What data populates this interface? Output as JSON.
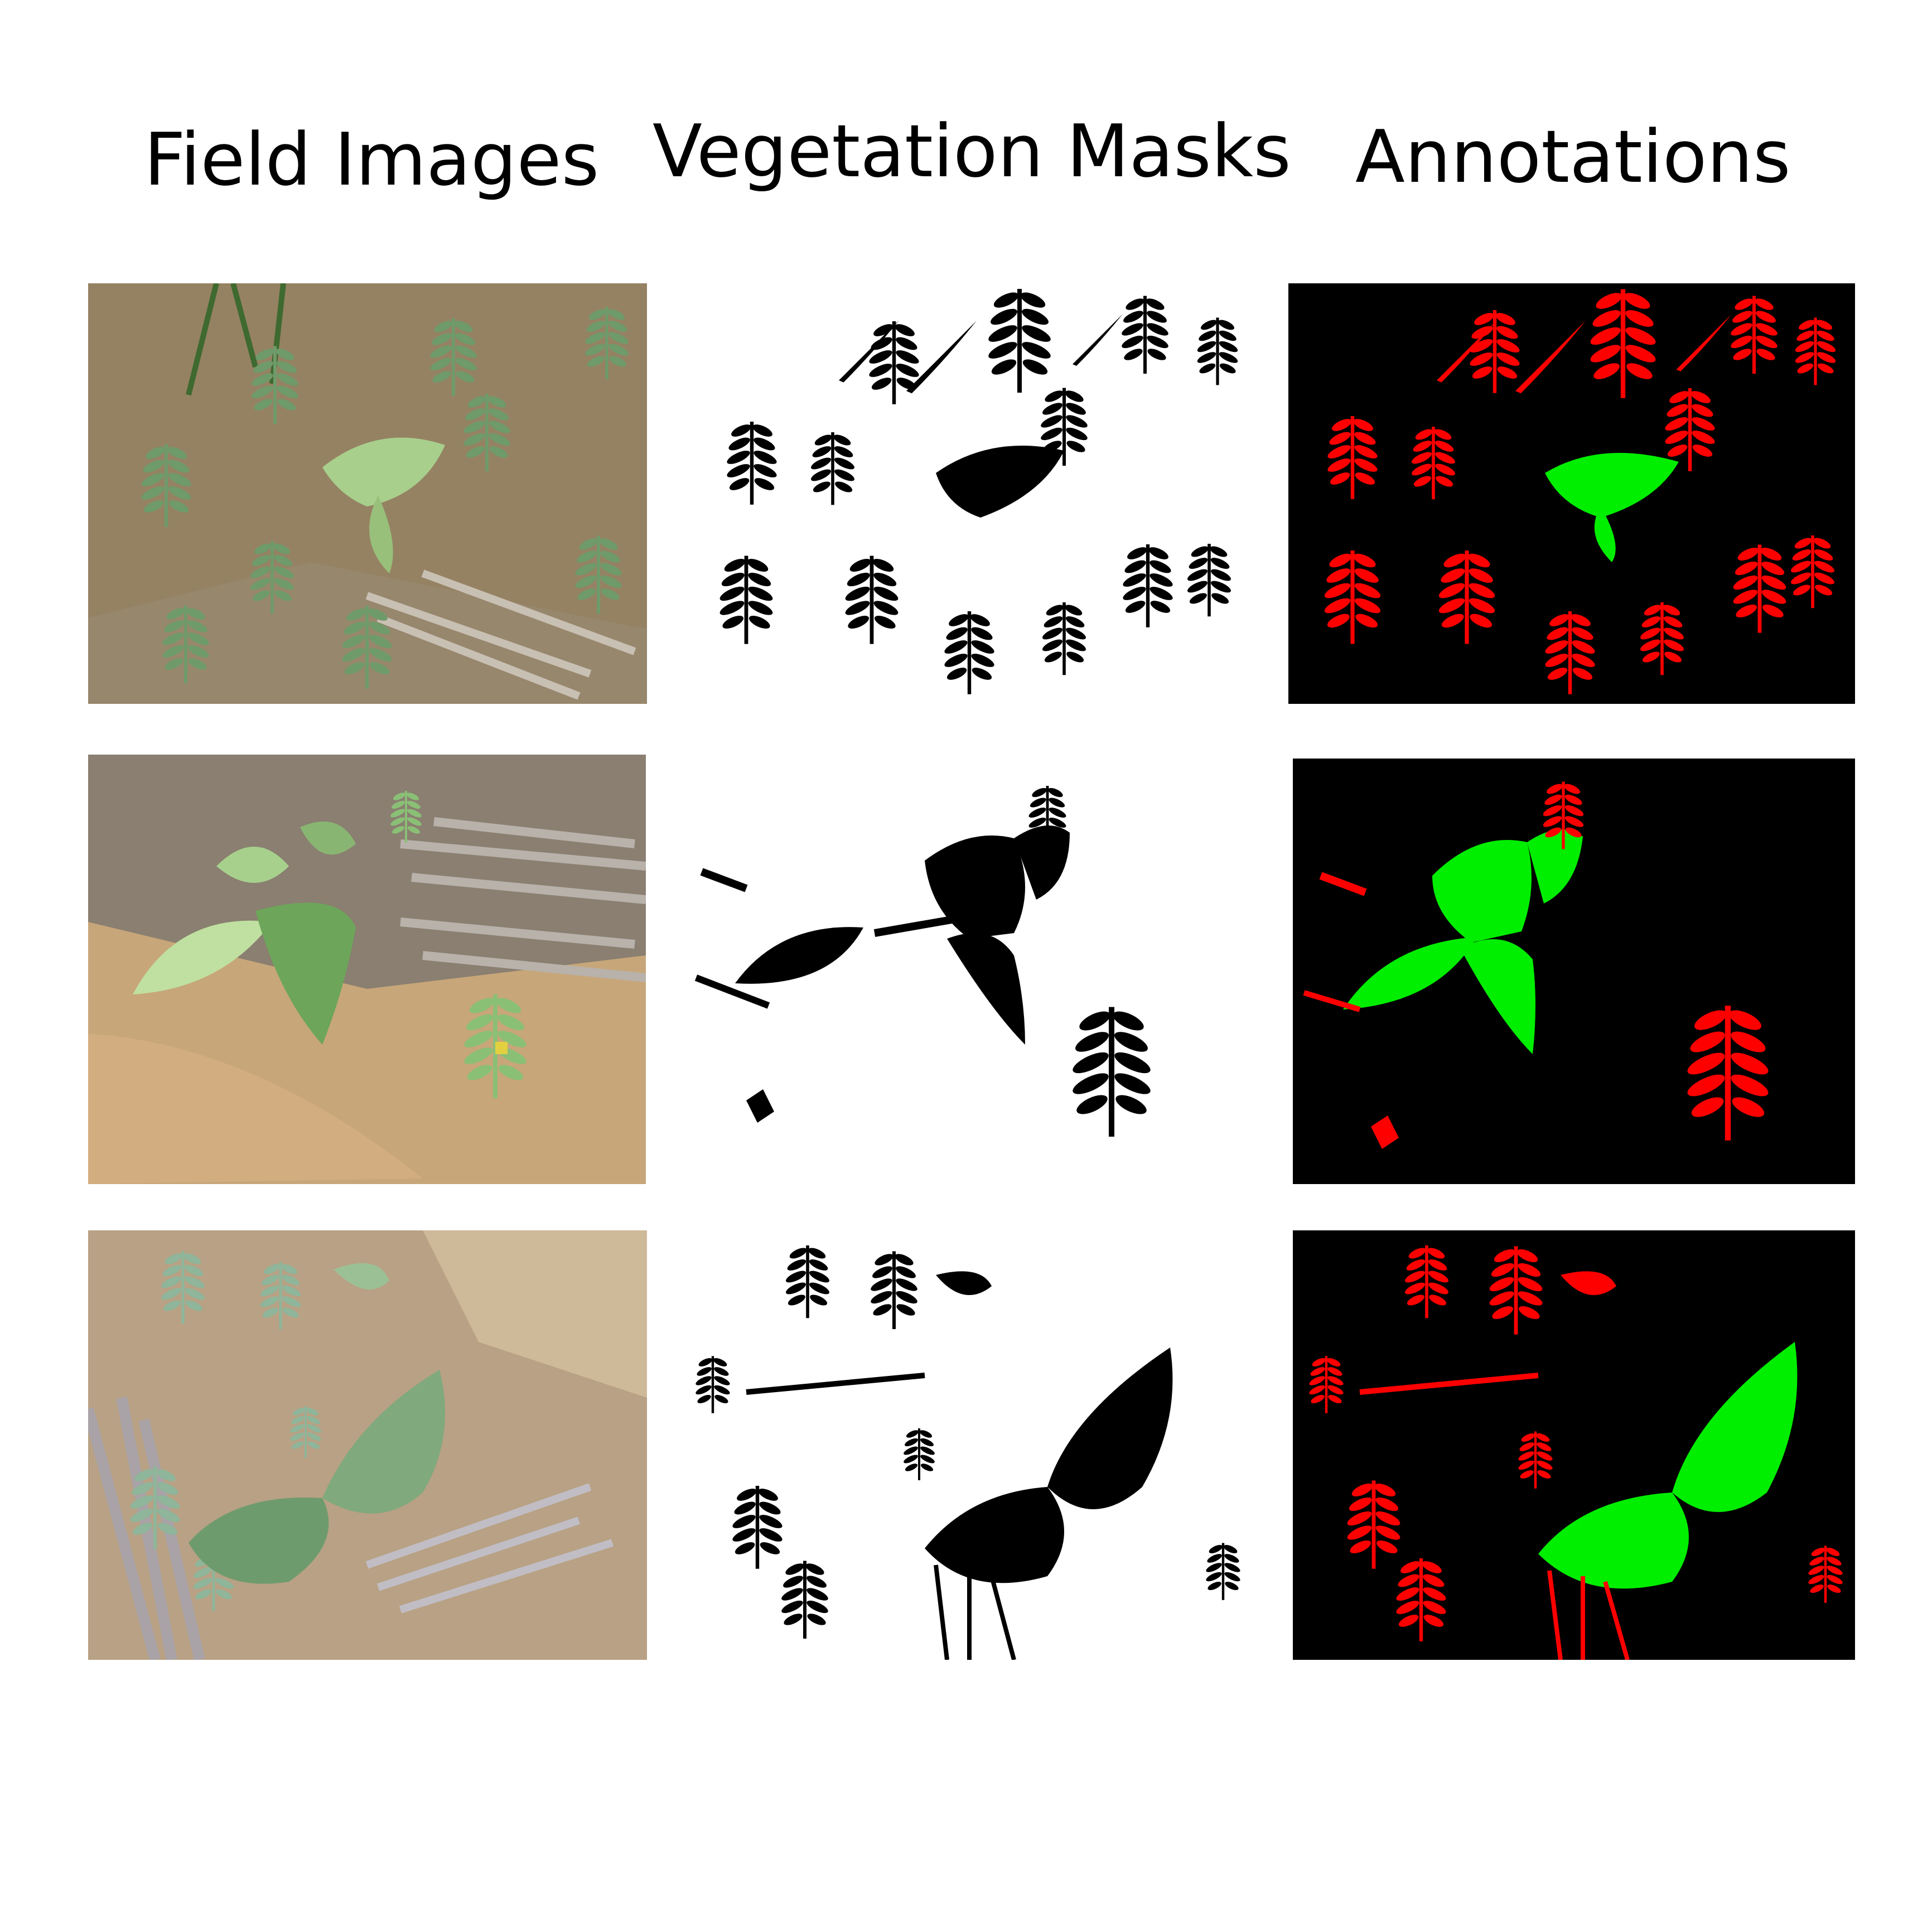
{
  "headers": {
    "field_images": "Field Images",
    "vegetation_masks": "Vegetation Masks",
    "annotations": "Annotations"
  },
  "rows": [
    {
      "field": "field-image-1",
      "mask": "vegetation-mask-1",
      "annotation": "annotation-1"
    },
    {
      "field": "field-image-2",
      "mask": "vegetation-mask-2",
      "annotation": "annotation-2"
    },
    {
      "field": "field-image-3",
      "mask": "vegetation-mask-3",
      "annotation": "annotation-3"
    }
  ],
  "colors": {
    "crop": "#00ee00",
    "weed": "#ff0000",
    "mask_vegetation": "#000000",
    "mask_background": "#ffffff",
    "annotation_background": "#000000"
  }
}
